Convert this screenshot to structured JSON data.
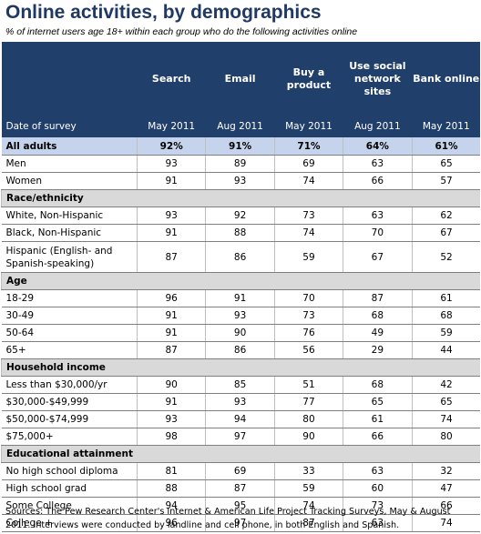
{
  "title": "Online activities, by demographics",
  "subtitle": "% of internet users age 18+ within each group who do the following activities online",
  "columns": [
    {
      "header": "Search",
      "date": "May 2011"
    },
    {
      "header": "Email",
      "date": "Aug 2011"
    },
    {
      "header": "Buy a product",
      "date": "May 2011"
    },
    {
      "header": "Use social network sites",
      "date": "Aug 2011"
    },
    {
      "header": "Bank online",
      "date": "May 2011"
    }
  ],
  "date_label": "Date of survey",
  "all_adults": {
    "label": "All adults",
    "values": [
      "92%",
      "91%",
      "71%",
      "64%",
      "61%"
    ]
  },
  "rows_gender": [
    {
      "label": "Men",
      "values": [
        "93",
        "89",
        "69",
        "63",
        "65"
      ]
    },
    {
      "label": "Women",
      "values": [
        "91",
        "93",
        "74",
        "66",
        "57"
      ]
    }
  ],
  "sections": [
    {
      "label": "Race/ethnicity",
      "rows": [
        {
          "label": "White, Non-Hispanic",
          "values": [
            "93",
            "92",
            "73",
            "63",
            "62"
          ]
        },
        {
          "label": "Black, Non-Hispanic",
          "values": [
            "91",
            "88",
            "74",
            "70",
            "67"
          ]
        },
        {
          "label": "Hispanic (English- and Spanish-speaking)",
          "values": [
            "87",
            "86",
            "59",
            "67",
            "52"
          ]
        }
      ]
    },
    {
      "label": "Age",
      "rows": [
        {
          "label": "18-29",
          "values": [
            "96",
            "91",
            "70",
            "87",
            "61"
          ]
        },
        {
          "label": "30-49",
          "values": [
            "91",
            "93",
            "73",
            "68",
            "68"
          ]
        },
        {
          "label": "50-64",
          "values": [
            "91",
            "90",
            "76",
            "49",
            "59"
          ]
        },
        {
          "label": "65+",
          "values": [
            "87",
            "86",
            "56",
            "29",
            "44"
          ]
        }
      ]
    },
    {
      "label": "Household income",
      "rows": [
        {
          "label": "Less than $30,000/yr",
          "values": [
            "90",
            "85",
            "51",
            "68",
            "42"
          ]
        },
        {
          "label": "$30,000-$49,999",
          "values": [
            "91",
            "93",
            "77",
            "65",
            "65"
          ]
        },
        {
          "label": "$50,000-$74,999",
          "values": [
            "93",
            "94",
            "80",
            "61",
            "74"
          ]
        },
        {
          "label": "$75,000+",
          "values": [
            "98",
            "97",
            "90",
            "66",
            "80"
          ]
        }
      ]
    },
    {
      "label": "Educational attainment",
      "rows": [
        {
          "label": "No high school diploma",
          "values": [
            "81",
            "69",
            "33",
            "63",
            "32"
          ]
        },
        {
          "label": "High school grad",
          "values": [
            "88",
            "87",
            "59",
            "60",
            "47"
          ]
        },
        {
          "label": "Some College",
          "values": [
            "94",
            "95",
            "74",
            "73",
            "66"
          ]
        },
        {
          "label": "College +",
          "values": [
            "96",
            "97",
            "87",
            "63",
            "74"
          ]
        }
      ]
    }
  ],
  "source": "Sources: The Pew Research Center's Internet & American Life Project Tracking Surveys, May & August 2011. Interviews were conducted by landline and cell phone, in both English and Spanish."
}
